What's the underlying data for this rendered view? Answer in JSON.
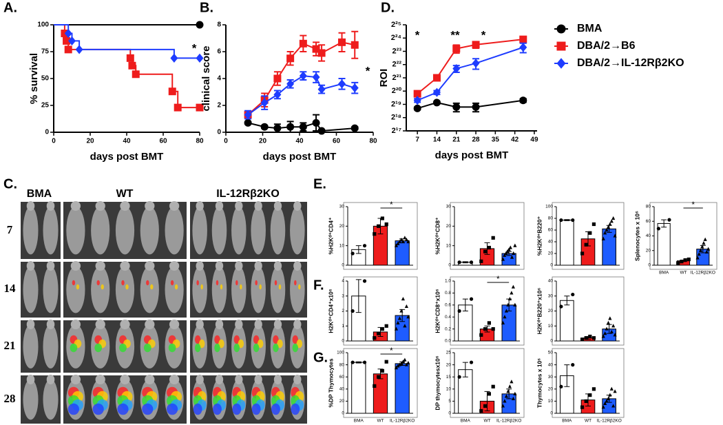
{
  "image_panel": {
    "panel": "C.",
    "columns": [
      "BMA",
      "WT",
      "IL-12Rβ2KO"
    ],
    "rows": [
      "7",
      "14",
      "21",
      "28"
    ]
  },
  "chart_data": [
    {
      "type": "line",
      "panel": "A.",
      "step": true,
      "xlabel": "days post BMT",
      "ylabel": "% survival",
      "xlim": [
        0,
        80
      ],
      "xticks": [
        0,
        20,
        40,
        60,
        80
      ],
      "ylim": [
        0,
        100
      ],
      "yticks": [
        0,
        25,
        50,
        75,
        100
      ],
      "annotations": [
        "*"
      ],
      "series": [
        {
          "color": "#000000",
          "marker": "circle",
          "x": [
            0,
            80
          ],
          "values": [
            100,
            100
          ]
        },
        {
          "color": "#ee1c1c",
          "marker": "square",
          "x": [
            0,
            6,
            7,
            8,
            42,
            43,
            45,
            65,
            68,
            80
          ],
          "values": [
            100,
            92,
            85,
            77,
            69,
            62,
            54,
            38,
            23,
            23
          ]
        },
        {
          "color": "#1e3cff",
          "marker": "diamond",
          "x": [
            0,
            8,
            10,
            14,
            66,
            80
          ],
          "values": [
            100,
            92,
            85,
            77,
            69,
            69
          ]
        }
      ]
    },
    {
      "type": "line",
      "panel": "B.",
      "xlabel": "days post BMT",
      "ylabel": "clinical score",
      "xlim": [
        0,
        80
      ],
      "xticks": [
        0,
        20,
        40,
        60,
        80
      ],
      "ylim": [
        0,
        8
      ],
      "yticks": [
        0,
        2,
        4,
        6,
        8
      ],
      "annotations": [
        "*"
      ],
      "series": [
        {
          "color": "#000000",
          "marker": "circle",
          "x": [
            12,
            21,
            28,
            35,
            42,
            49,
            52,
            70
          ],
          "values": [
            0.7,
            0.4,
            0.3,
            0.4,
            0.4,
            0.7,
            0.1,
            0.3
          ],
          "errors": [
            0.1,
            0.1,
            0.3,
            0.4,
            0.3,
            0.6,
            0.1,
            0.1
          ]
        },
        {
          "color": "#ee1c1c",
          "marker": "square",
          "x": [
            12,
            21,
            28,
            35,
            42,
            49,
            52,
            63,
            70
          ],
          "values": [
            1.3,
            2.4,
            4.0,
            5.5,
            6.6,
            6.2,
            5.9,
            6.7,
            6.5
          ],
          "errors": [
            0.2,
            0.5,
            0.5,
            0.5,
            0.6,
            0.5,
            0.6,
            0.7,
            1.0
          ]
        },
        {
          "color": "#1e3cff",
          "marker": "diamond",
          "x": [
            12,
            21,
            28,
            35,
            42,
            49,
            52,
            63,
            70
          ],
          "values": [
            1.3,
            2.2,
            2.8,
            3.6,
            4.2,
            4.1,
            3.2,
            3.6,
            3.3
          ],
          "errors": [
            0.3,
            0.5,
            0.3,
            0.3,
            0.3,
            0.4,
            0.3,
            0.4,
            0.4
          ]
        }
      ]
    },
    {
      "type": "line",
      "panel": "D.",
      "xlabel": "days post BMT",
      "ylabel": "ROI",
      "yscale": "log",
      "legend": "outside-right",
      "xlim": [
        3,
        50
      ],
      "xticks": [
        7,
        14,
        21,
        28,
        35,
        42,
        49
      ],
      "ylim": [
        131072,
        33554432
      ],
      "yticks": [
        {
          "value": 131072,
          "label": "2¹⁷"
        },
        {
          "value": 262144,
          "label": "2¹⁸"
        },
        {
          "value": 524288,
          "label": "2¹⁹"
        },
        {
          "value": 1048576,
          "label": "2²⁰"
        },
        {
          "value": 2097152,
          "label": "2²¹"
        },
        {
          "value": 4194304,
          "label": "2²²"
        },
        {
          "value": 8388608,
          "label": "2²³"
        },
        {
          "value": 16777216,
          "label": "2²⁴"
        },
        {
          "value": 33554432,
          "label": "2²⁵"
        }
      ],
      "annotations": [
        "*",
        "**",
        "*"
      ],
      "series": [
        {
          "name": "BMA",
          "color": "#000000",
          "marker": "circle",
          "x": [
            7,
            14,
            21,
            28,
            45
          ],
          "values": [
            425000,
            575000,
            456000,
            456000,
            645000
          ],
          "errors": [
            30000,
            40000,
            100000,
            100000,
            60000
          ]
        },
        {
          "name": "DBA/2→B6",
          "color": "#ee1c1c",
          "marker": "square",
          "x": [
            7,
            14,
            21,
            28,
            45
          ],
          "values": [
            913000,
            2097152,
            9634000,
            11863000,
            15654000
          ],
          "errors": [
            100000,
            200000,
            2000000,
            2000000,
            2500000
          ]
        },
        {
          "name": "DBA/2→IL-12Rβ2KO",
          "color": "#1e3cff",
          "marker": "diamond",
          "x": [
            7,
            14,
            21,
            28,
            45
          ],
          "values": [
            645000,
            978000,
            3400000,
            4494000,
            10320000
          ],
          "errors": [
            60000,
            100000,
            600000,
            1200000,
            2500000
          ]
        }
      ]
    },
    {
      "type": "bar",
      "panel": "E.",
      "ylabel": "%H2Kᵈ⁺CD4⁺",
      "categories": [
        null,
        null,
        null
      ],
      "colors": [
        "#ffffff",
        "#ee1c1c",
        "#1e5cff"
      ],
      "markers": [
        "circle",
        "square",
        "triangle"
      ],
      "ylim": [
        0,
        30
      ],
      "yticks": [
        0,
        10,
        20,
        30
      ],
      "values": [
        8,
        20,
        12.5
      ],
      "errors": [
        2,
        4,
        1
      ],
      "annotations": [
        "*"
      ],
      "points": [
        [
          6,
          10
        ],
        [
          16,
          20,
          24,
          21
        ],
        [
          10,
          11,
          12,
          13,
          12,
          14,
          13,
          12
        ]
      ]
    },
    {
      "type": "bar",
      "ylabel": "%H2Kᵈ⁺CD8⁺",
      "categories": [
        null,
        null,
        null
      ],
      "colors": [
        "#ffffff",
        "#ee1c1c",
        "#1e5cff"
      ],
      "markers": [
        "circle",
        "square",
        "triangle"
      ],
      "ylim": [
        0,
        30
      ],
      "yticks": [
        0,
        10,
        20,
        30
      ],
      "values": [
        1.5,
        8.5,
        6
      ],
      "errors": [
        0.3,
        3,
        1
      ],
      "points": [
        [
          1.5,
          1.5
        ],
        [
          2,
          7,
          9,
          14
        ],
        [
          3,
          5,
          6,
          7,
          8,
          9,
          4,
          6,
          10
        ]
      ]
    },
    {
      "type": "bar",
      "ylabel": "%H2Kᵈ⁺B220⁺",
      "categories": [
        null,
        null,
        null
      ],
      "colors": [
        "#ffffff",
        "#ee1c1c",
        "#1e5cff"
      ],
      "markers": [
        "circle",
        "square",
        "triangle"
      ],
      "ylim": [
        0,
        100
      ],
      "yticks": [
        0,
        20,
        40,
        60,
        80,
        100
      ],
      "values": [
        77,
        45,
        62
      ],
      "errors": [
        1,
        12,
        6
      ],
      "points": [
        [
          77,
          77
        ],
        [
          20,
          35,
          55,
          70
        ],
        [
          45,
          55,
          60,
          65,
          70,
          75,
          80,
          50
        ]
      ]
    },
    {
      "type": "bar",
      "ylabel": "Splenocytes x 10⁶",
      "categories": [
        "BMA",
        "WT",
        "IL-12Rβ2KO"
      ],
      "colors": [
        "#ffffff",
        "#ee1c1c",
        "#1e5cff"
      ],
      "markers": [
        "circle",
        "square",
        "triangle"
      ],
      "ylim": [
        0,
        80
      ],
      "yticks": [
        0,
        20,
        40,
        60,
        80
      ],
      "values": [
        57,
        6,
        22
      ],
      "errors": [
        5,
        1,
        5
      ],
      "annotations": [
        "*"
      ],
      "points": [
        [
          50,
          62
        ],
        [
          3,
          5,
          7,
          8
        ],
        [
          10,
          15,
          20,
          25,
          30,
          35,
          18,
          22
        ]
      ]
    },
    {
      "type": "bar",
      "panel": "F.",
      "ylabel": "H2Kᵈ⁺CD4⁺x10⁶",
      "categories": [
        null,
        null,
        null
      ],
      "colors": [
        "#ffffff",
        "#ee1c1c",
        "#1e5cff"
      ],
      "markers": [
        "circle",
        "square",
        "triangle"
      ],
      "ylim": [
        0,
        4
      ],
      "yticks": [
        0,
        1,
        2,
        3,
        4
      ],
      "values": [
        3,
        0.6,
        1.7
      ],
      "errors": [
        1.1,
        0.3,
        0.4
      ],
      "points": [
        [
          2,
          4
        ],
        [
          0.2,
          0.5,
          0.8,
          1
        ],
        [
          0.8,
          1.2,
          1.5,
          2,
          2.8,
          1,
          2.3,
          1.6
        ]
      ]
    },
    {
      "type": "bar",
      "ylabel": "H2Kᵈ⁺CD8⁺x10⁶",
      "categories": [
        null,
        null,
        null
      ],
      "colors": [
        "#ffffff",
        "#ee1c1c",
        "#1e5cff"
      ],
      "markers": [
        "circle",
        "square",
        "triangle"
      ],
      "ylim": [
        0,
        1
      ],
      "yticks": [
        {
          "value": 0,
          "label": "0.0"
        },
        0.2,
        0.4,
        0.6,
        0.8,
        {
          "value": 1,
          "label": "1.0"
        }
      ],
      "values": [
        0.6,
        0.2,
        0.6
      ],
      "errors": [
        0.1,
        0.05,
        0.1
      ],
      "annotations": [
        "*"
      ],
      "points": [
        [
          0.5,
          0.7
        ],
        [
          0.1,
          0.2,
          0.3,
          0.2
        ],
        [
          0.3,
          0.4,
          0.5,
          0.6,
          0.7,
          0.8,
          0.9,
          0.6
        ]
      ]
    },
    {
      "type": "bar",
      "ylabel": "H2Kᵈ⁺B220⁺x10⁶",
      "categories": [
        null,
        null,
        null
      ],
      "colors": [
        "#ffffff",
        "#ee1c1c",
        "#1e5cff"
      ],
      "markers": [
        "circle",
        "square",
        "triangle"
      ],
      "ylim": [
        0,
        40
      ],
      "yticks": [
        0,
        10,
        20,
        30,
        40
      ],
      "values": [
        27,
        2,
        8
      ],
      "errors": [
        3,
        1,
        3
      ],
      "points": [
        [
          23,
          31
        ],
        [
          1,
          2,
          3,
          2
        ],
        [
          3,
          5,
          8,
          12,
          15,
          6,
          10,
          4
        ]
      ]
    },
    {
      "type": "bar",
      "panel": "G.",
      "ylabel": "%DP Thymocytes",
      "categories": [
        "BMA",
        "WT",
        "IL-12Rβ2KO"
      ],
      "colors": [
        "#ffffff",
        "#ee1c1c",
        "#1e5cff"
      ],
      "markers": [
        "circle",
        "square",
        "triangle"
      ],
      "ylim": [
        0,
        100
      ],
      "yticks": [
        0,
        20,
        40,
        60,
        80,
        100
      ],
      "values": [
        84,
        65,
        82
      ],
      "errors": [
        1,
        8,
        3
      ],
      "annotations": [
        "*"
      ],
      "points": [
        [
          84,
          84
        ],
        [
          45,
          60,
          70,
          85
        ],
        [
          75,
          78,
          80,
          82,
          85,
          88,
          80,
          83
        ]
      ]
    },
    {
      "type": "bar",
      "ylabel": "DP thymocytesx10⁶",
      "categories": [
        "BMA",
        "WT",
        "IL-12Rβ2KO"
      ],
      "colors": [
        "#ffffff",
        "#ee1c1c",
        "#1e5cff"
      ],
      "markers": [
        "circle",
        "square",
        "triangle"
      ],
      "ylim": [
        0,
        25
      ],
      "yticks": [
        0,
        5,
        10,
        15,
        20,
        25
      ],
      "values": [
        18,
        5,
        8
      ],
      "errors": [
        3,
        4,
        2
      ],
      "points": [
        [
          15,
          21
        ],
        [
          1,
          3,
          8,
          11
        ],
        [
          3,
          5,
          7,
          9,
          11,
          13,
          6,
          8
        ]
      ]
    },
    {
      "type": "bar",
      "ylabel": "Thymocytes x 10⁶",
      "categories": [
        "BMA",
        "WT",
        "IL-12Rβ2KO"
      ],
      "colors": [
        "#ffffff",
        "#ee1c1c",
        "#1e5cff"
      ],
      "markers": [
        "circle",
        "square",
        "triangle"
      ],
      "ylim": [
        0,
        50
      ],
      "yticks": [
        0,
        10,
        20,
        30,
        40,
        50
      ],
      "values": [
        31,
        11,
        12
      ],
      "errors": [
        9,
        5,
        3
      ],
      "points": [
        [
          22,
          40
        ],
        [
          5,
          10,
          15,
          20
        ],
        [
          5,
          8,
          10,
          12,
          15,
          20,
          6,
          18
        ]
      ]
    }
  ]
}
